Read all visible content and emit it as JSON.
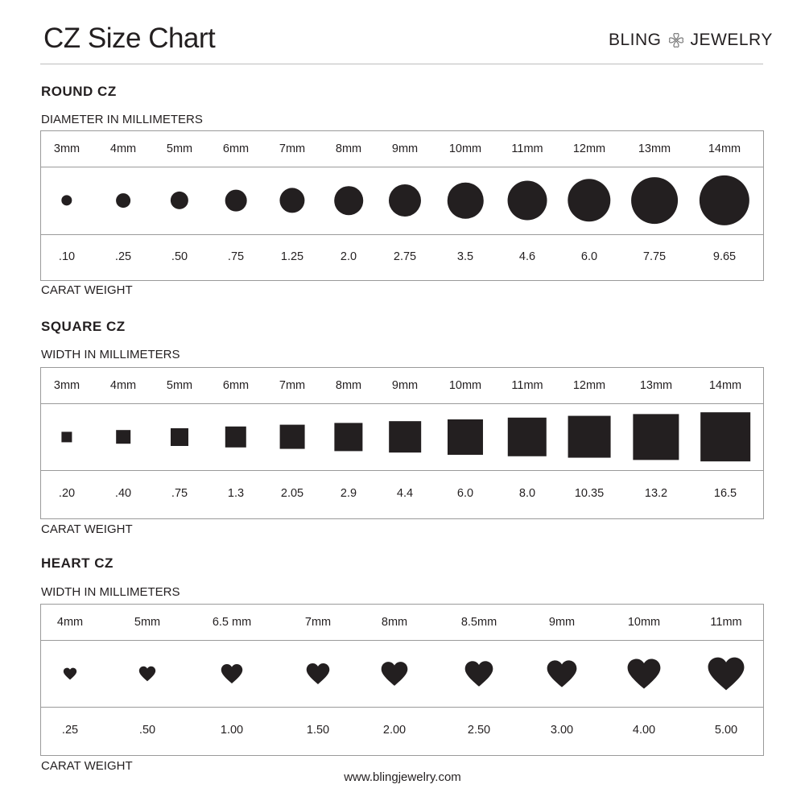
{
  "header": {
    "title": "CZ Size Chart",
    "brand_left": "BLING",
    "brand_right": "JEWELRY",
    "brand_icon": "clover-hearts-icon"
  },
  "sections": [
    {
      "title": "ROUND CZ",
      "measure_label": "DIAMETER IN MILLIMETERS",
      "weight_label": "CARAT WEIGHT",
      "shape": "circle",
      "sizes": [
        "3mm",
        "4mm",
        "5mm",
        "6mm",
        "7mm",
        "8mm",
        "9mm",
        "10mm",
        "11mm",
        "12mm",
        "13mm",
        "14mm"
      ],
      "carats": [
        ".10",
        ".25",
        ".50",
        ".75",
        "1.25",
        "2.0",
        "2.75",
        "3.5",
        "4.6",
        "6.0",
        "7.75",
        "9.65"
      ]
    },
    {
      "title": "SQUARE CZ",
      "measure_label": "WIDTH IN MILLIMETERS",
      "weight_label": "CARAT WEIGHT",
      "shape": "square",
      "sizes": [
        "3mm",
        "4mm",
        "5mm",
        "6mm",
        "7mm",
        "8mm",
        "9mm",
        "10mm",
        "11mm",
        "12mm",
        "13mm",
        "14mm"
      ],
      "carats": [
        ".20",
        ".40",
        ".75",
        "1.3",
        "2.05",
        "2.9",
        "4.4",
        "6.0",
        "8.0",
        "10.35",
        "13.2",
        "16.5"
      ]
    },
    {
      "title": "HEART CZ",
      "measure_label": "WIDTH IN MILLIMETERS",
      "weight_label": "CARAT WEIGHT",
      "shape": "heart",
      "sizes": [
        "4mm",
        "5mm",
        "6.5 mm",
        "7mm",
        "8mm",
        "8.5mm",
        "9mm",
        "10mm",
        "11mm"
      ],
      "carats": [
        ".25",
        ".50",
        "1.00",
        "1.50",
        "2.00",
        "2.50",
        "3.00",
        "4.00",
        "5.00"
      ]
    }
  ],
  "footer": {
    "url": "www.blingjewelry.com"
  },
  "colors": {
    "ink": "#231f20",
    "border": "#9a9a9a"
  }
}
